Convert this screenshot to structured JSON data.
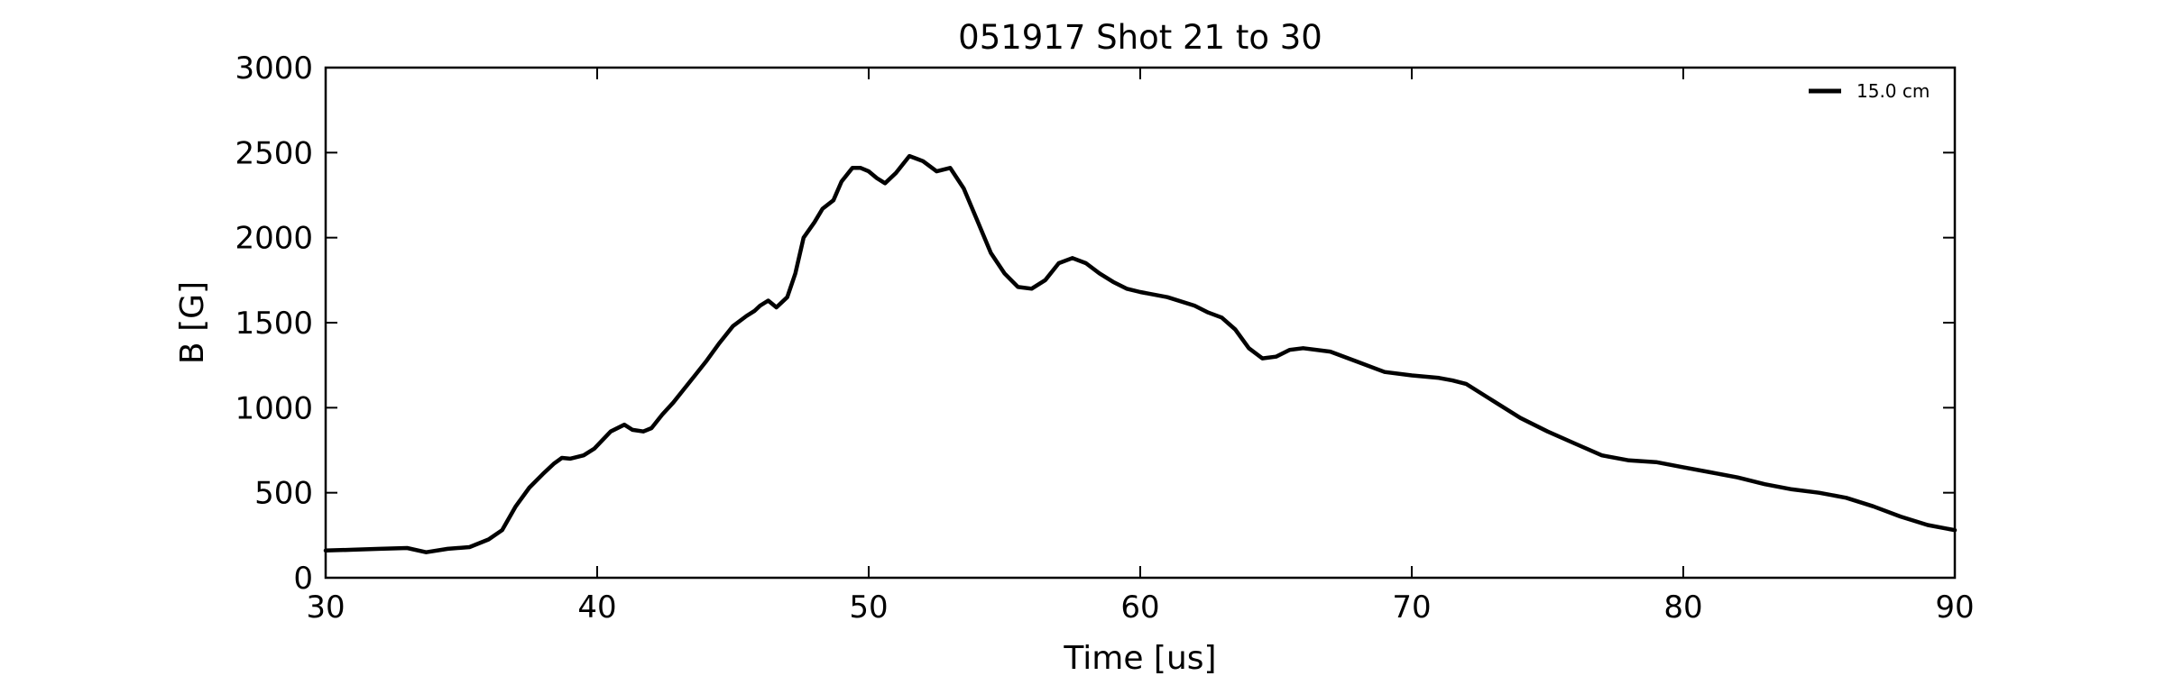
{
  "chart_data": {
    "type": "line",
    "title": "051917 Shot 21 to 30",
    "xlabel": "Time [us]",
    "ylabel": "B [G]",
    "xlim": [
      30,
      90
    ],
    "ylim": [
      0,
      3000
    ],
    "xticks": [
      30,
      40,
      50,
      60,
      70,
      80,
      90
    ],
    "yticks": [
      0,
      500,
      1000,
      1500,
      2000,
      2500,
      3000
    ],
    "grid": false,
    "legend_position": "top-right",
    "series": [
      {
        "name": "15.0 cm",
        "color": "#000000",
        "x": [
          30,
          31,
          32,
          33,
          33.7,
          34.5,
          35.3,
          36,
          36.5,
          37,
          37.5,
          38,
          38.4,
          38.7,
          39,
          39.5,
          39.9,
          40.5,
          41,
          41.3,
          41.7,
          42,
          42.4,
          42.8,
          43.2,
          43.6,
          44,
          44.5,
          45,
          45.5,
          45.8,
          46,
          46.3,
          46.6,
          47,
          47.3,
          47.6,
          48,
          48.3,
          48.7,
          49,
          49.4,
          49.7,
          50,
          50.3,
          50.6,
          51,
          51.5,
          52,
          52.5,
          53,
          53.5,
          54,
          54.5,
          55,
          55.5,
          56,
          56.5,
          57,
          57.5,
          58,
          58.5,
          59,
          59.5,
          60,
          61,
          62,
          62.5,
          63,
          63.5,
          64,
          64.5,
          65,
          65.5,
          66,
          67,
          68,
          69,
          70,
          71,
          71.5,
          72,
          73,
          74,
          75,
          76,
          77,
          78,
          79,
          80,
          81,
          82,
          83,
          84,
          85,
          86,
          87,
          88,
          89,
          90
        ],
        "y": [
          160,
          165,
          170,
          175,
          150,
          170,
          180,
          225,
          280,
          420,
          530,
          610,
          670,
          705,
          700,
          720,
          760,
          860,
          900,
          870,
          860,
          880,
          960,
          1030,
          1110,
          1190,
          1270,
          1380,
          1480,
          1540,
          1570,
          1600,
          1630,
          1590,
          1650,
          1790,
          2000,
          2090,
          2170,
          2220,
          2330,
          2410,
          2410,
          2390,
          2350,
          2320,
          2380,
          2480,
          2450,
          2390,
          2410,
          2290,
          2100,
          1910,
          1790,
          1710,
          1700,
          1750,
          1850,
          1880,
          1850,
          1790,
          1740,
          1700,
          1680,
          1650,
          1600,
          1560,
          1530,
          1460,
          1350,
          1290,
          1300,
          1340,
          1350,
          1330,
          1270,
          1210,
          1190,
          1175,
          1160,
          1140,
          1040,
          940,
          860,
          790,
          720,
          690,
          680,
          650,
          620,
          590,
          550,
          520,
          500,
          470,
          420,
          360,
          310,
          280
        ]
      }
    ]
  }
}
